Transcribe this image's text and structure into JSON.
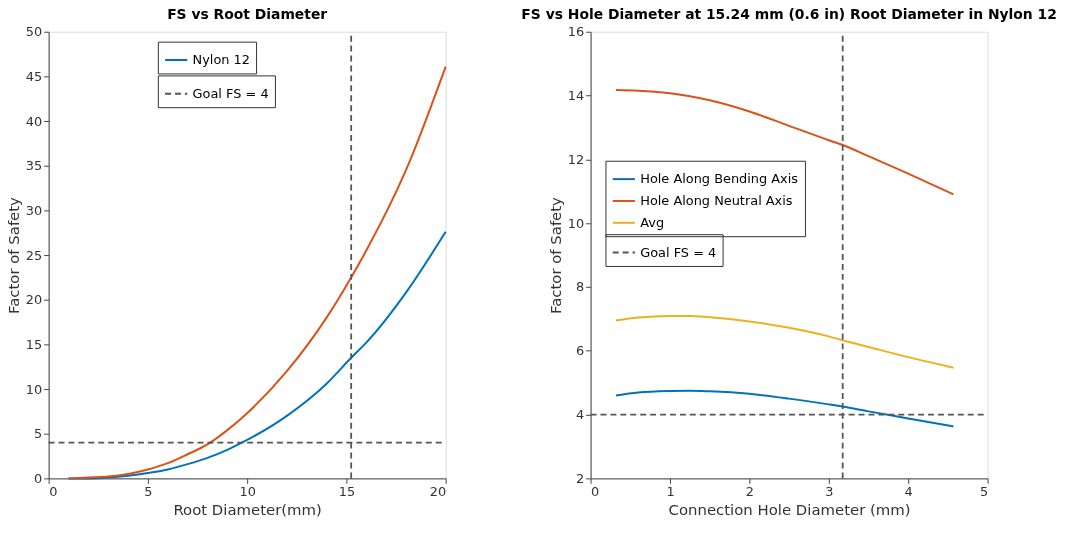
{
  "chart_data": [
    {
      "type": "line",
      "title": "FS vs Root Diameter",
      "xlabel": "Root Diameter(mm)",
      "ylabel": "Factor of Safety",
      "x": [
        1,
        2,
        3,
        4,
        5,
        6,
        7,
        8,
        9,
        10,
        12,
        14,
        15.24,
        16,
        18,
        20
      ],
      "series": [
        {
          "name": "Nylon 12",
          "color": "#0072bd",
          "values": [
            0,
            0,
            0.1,
            0.3,
            0.6,
            1.0,
            1.6,
            2.3,
            3.2,
            4.3,
            7.0,
            10.6,
            13.5,
            15.2,
            20.8,
            27.6
          ]
        },
        {
          "color": "#d95319",
          "values": [
            0,
            0.1,
            0.2,
            0.5,
            1.0,
            1.7,
            2.7,
            3.8,
            5.4,
            7.3,
            12.0,
            18.0,
            22.5,
            25.5,
            34.5,
            46.1
          ]
        }
      ],
      "ref_lines": [
        {
          "axis": "y",
          "value": 4,
          "label": "Goal FS = 4",
          "color": "#555555",
          "line_style": "dashed"
        },
        {
          "axis": "x",
          "value": 15.24,
          "color": "#555555",
          "line_style": "dashed"
        }
      ],
      "xlim": [
        0,
        20
      ],
      "xticks": [
        0,
        5,
        10,
        15,
        20
      ],
      "ylim": [
        0,
        50
      ],
      "yticks": [
        0,
        5,
        10,
        15,
        20,
        25,
        30,
        35,
        40,
        45,
        50
      ],
      "grid": false,
      "legend": "top",
      "line_style": "solid",
      "marker": "none"
    },
    {
      "type": "line",
      "title": "FS vs Hole Diameter at 15.24 mm (0.6 in) Root Diameter in Nylon 12",
      "xlabel": "Connection Hole Diameter (mm)",
      "ylabel": "Factor of Safety",
      "x": [
        0.32,
        0.6,
        1.0,
        1.25,
        1.5,
        2,
        2.5,
        3,
        3.175,
        3.5,
        4,
        4.57
      ],
      "series": [
        {
          "name": "Hole Along Bending Axis",
          "color": "#0072bd",
          "values": [
            4.6,
            4.69,
            4.74,
            4.75,
            4.73,
            4.65,
            4.5,
            4.32,
            4.25,
            4.1,
            3.88,
            3.63
          ]
        },
        {
          "name": "Hole Along Neutral Axis",
          "color": "#d95319",
          "values": [
            14.17,
            14.15,
            14.07,
            13.98,
            13.85,
            13.5,
            13.05,
            12.6,
            12.45,
            12.1,
            11.55,
            10.9
          ]
        },
        {
          "name": "Avg",
          "color": "#edb120",
          "values": [
            6.95,
            7.04,
            7.09,
            7.09,
            7.05,
            6.92,
            6.72,
            6.45,
            6.33,
            6.12,
            5.8,
            5.47
          ]
        }
      ],
      "ref_lines": [
        {
          "axis": "y",
          "value": 4,
          "label": "Goal FS = 4",
          "color": "#555555",
          "line_style": "dashed"
        },
        {
          "axis": "x",
          "value": 3.175,
          "color": "#555555",
          "line_style": "dashed"
        }
      ],
      "xlim": [
        0,
        5
      ],
      "xticks": [
        0,
        1,
        2,
        3,
        4,
        5
      ],
      "ylim": [
        2,
        16
      ],
      "yticks": [
        2,
        4,
        6,
        8,
        10,
        12,
        14,
        16
      ],
      "grid": false,
      "legend": "left",
      "line_style": "solid",
      "marker": "none"
    }
  ]
}
